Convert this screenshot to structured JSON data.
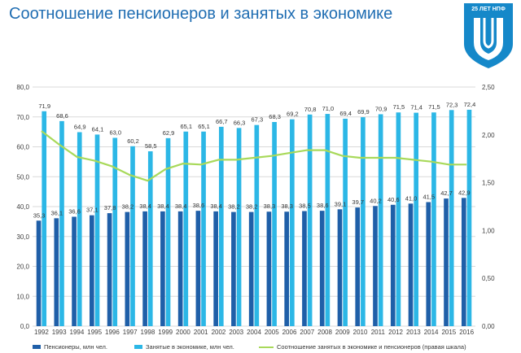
{
  "title": "Соотношение пенсионеров и занятых в экономике",
  "logo": {
    "text": "25 ЛЕТ НПФ",
    "icon": "npf-shield-logo",
    "color": "#1588c9"
  },
  "colors": {
    "pensioners": "#1f5fa8",
    "employed": "#2cb7e6",
    "ratio": "#a8d95a",
    "title": "#1f6db2"
  },
  "legend": {
    "pensioners": "Пенсионеры, млн чел.",
    "employed": "Занятые в экономике, млн чел.",
    "ratio": "Соотношение занятых в экономике и пенсионеров (правая шкала)"
  },
  "chart_data": {
    "type": "bar",
    "categories": [
      "1992",
      "1993",
      "1994",
      "1995",
      "1996",
      "1997",
      "1998",
      "1999",
      "2000",
      "2001",
      "2002",
      "2003",
      "2004",
      "2005",
      "2006",
      "2007",
      "2008",
      "2009",
      "2010",
      "2011",
      "2012",
      "2013",
      "2014",
      "2015",
      "2016"
    ],
    "series": [
      {
        "name": "Пенсионеры, млн чел.",
        "axis": "left",
        "values": [
          35.3,
          36.1,
          36.6,
          37.1,
          37.8,
          38.2,
          38.4,
          38.4,
          38.4,
          38.6,
          38.4,
          38.2,
          38.2,
          38.3,
          38.3,
          38.5,
          38.6,
          39.1,
          39.7,
          40.2,
          40.6,
          41.0,
          41.5,
          42.7,
          42.9
        ],
        "labels": [
          "35,3",
          "36,1",
          "36,6",
          "37,1",
          "37,8",
          "38,2",
          "38,4",
          "38,4",
          "38,4",
          "38,6",
          "38,4",
          "38,2",
          "38,2",
          "38,3",
          "38,3",
          "38,5",
          "38,6",
          "39,1",
          "39,7",
          "40,2",
          "40,6",
          "41,0",
          "41,5",
          "42,7",
          "42,9"
        ]
      },
      {
        "name": "Занятые в экономике, млн чел.",
        "axis": "left",
        "values": [
          71.9,
          68.6,
          64.9,
          64.1,
          63.0,
          60.2,
          58.5,
          62.9,
          65.1,
          65.1,
          66.7,
          66.3,
          67.3,
          68.3,
          69.2,
          70.8,
          71.0,
          69.4,
          69.9,
          70.9,
          71.5,
          71.4,
          71.5,
          72.3,
          72.4
        ],
        "labels": [
          "71,9",
          "68,6",
          "64,9",
          "64,1",
          "63,0",
          "60,2",
          "58,5",
          "62,9",
          "65,1",
          "65,1",
          "66,7",
          "66,3",
          "67,3",
          "68,3",
          "69,2",
          "70,8",
          "71,0",
          "69,4",
          "69,9",
          "70,9",
          "71,5",
          "71,4",
          "71,5",
          "72,3",
          "72,4"
        ]
      },
      {
        "name": "Соотношение занятых в экономике и пенсионеров (правая шкала)",
        "type": "line",
        "axis": "right",
        "values": [
          2.04,
          1.9,
          1.77,
          1.73,
          1.67,
          1.58,
          1.52,
          1.64,
          1.7,
          1.69,
          1.74,
          1.74,
          1.76,
          1.78,
          1.81,
          1.84,
          1.84,
          1.78,
          1.76,
          1.76,
          1.76,
          1.74,
          1.72,
          1.69,
          1.69
        ]
      }
    ],
    "y_left": {
      "min": 0,
      "max": 80,
      "ticks": [
        "0,0",
        "10,0",
        "20,0",
        "30,0",
        "40,0",
        "50,0",
        "60,0",
        "70,0",
        "80,0"
      ]
    },
    "y_right": {
      "min": 0,
      "max": 2.5,
      "ticks": [
        "0,00",
        "0,50",
        "1,00",
        "1,50",
        "2,00",
        "2,50"
      ]
    },
    "legend_position": "bottom"
  }
}
